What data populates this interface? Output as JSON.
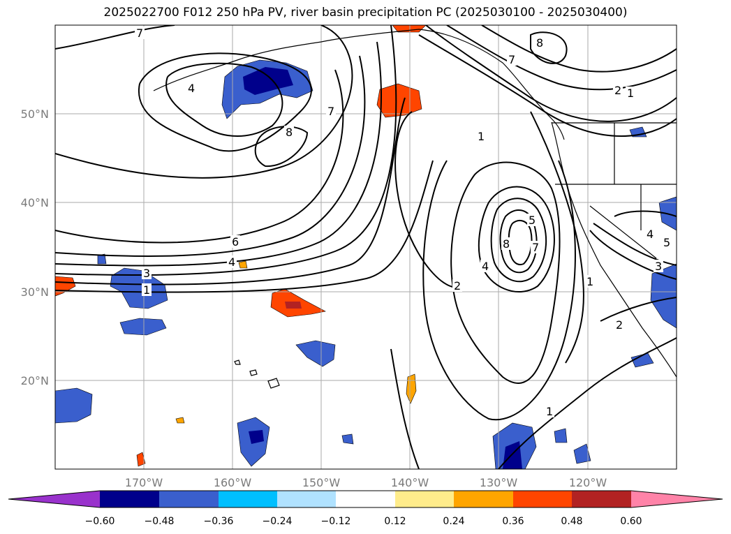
{
  "title": "2025022700 F012 250 hPa PV, river basin precipitation PC (2025030100 - 2025030400)",
  "map": {
    "lat_labels": [
      "50°N",
      "40°N",
      "30°N",
      "20°N"
    ],
    "lon_labels": [
      "170°W",
      "160°W",
      "150°W",
      "140°W",
      "130°W",
      "120°W"
    ],
    "contour_labels": [
      "1",
      "2",
      "3",
      "4",
      "5",
      "6",
      "7",
      "8"
    ],
    "gridline_color": "#aaaaaa",
    "contour_color": "#000000",
    "coastline_color": "#000000"
  },
  "colorbar": {
    "ticks": [
      "−0.60",
      "−0.48",
      "−0.36",
      "−0.24",
      "−0.12",
      "0.12",
      "0.24",
      "0.36",
      "0.48",
      "0.60"
    ],
    "colors": [
      "#9932cc",
      "#00008b",
      "#3a5fcd",
      "#00bfff",
      "#b0e2ff",
      "#ffffff",
      "#ffec8b",
      "#ffa500",
      "#ff4500",
      "#b22222",
      "#ff83a8"
    ],
    "extend": "both"
  },
  "chart_data": {
    "type": "heatmap",
    "title": "2025022700 F012 250 hPa PV, river basin precipitation PC (2025030100 - 2025030400)",
    "lon_range_deg": [
      -180,
      -110
    ],
    "lat_range_deg": [
      10,
      60
    ],
    "lat_ticks": [
      50,
      40,
      30,
      20
    ],
    "lon_ticks": [
      -170,
      -160,
      -150,
      -140,
      -130,
      -120
    ],
    "grid": true,
    "overlay": "250 hPa PV contours (levels 1-8)",
    "filled_field": "river basin precipitation PC",
    "colorbar_levels": [
      -0.6,
      -0.48,
      -0.36,
      -0.24,
      -0.12,
      0.12,
      0.24,
      0.36,
      0.48,
      0.6
    ],
    "colorbar_extend": "both"
  }
}
